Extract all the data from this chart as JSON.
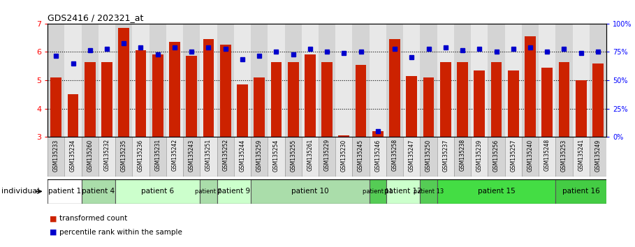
{
  "title": "GDS2416 / 202321_at",
  "samples": [
    "GSM135233",
    "GSM135234",
    "GSM135260",
    "GSM135232",
    "GSM135235",
    "GSM135236",
    "GSM135231",
    "GSM135242",
    "GSM135243",
    "GSM135251",
    "GSM135252",
    "GSM135244",
    "GSM135259",
    "GSM135254",
    "GSM135255",
    "GSM135261",
    "GSM135229",
    "GSM135230",
    "GSM135245",
    "GSM135246",
    "GSM135258",
    "GSM135247",
    "GSM135250",
    "GSM135237",
    "GSM135238",
    "GSM135239",
    "GSM135256",
    "GSM135257",
    "GSM135240",
    "GSM135248",
    "GSM135253",
    "GSM135241",
    "GSM135249"
  ],
  "bar_values": [
    5.1,
    4.5,
    5.65,
    5.65,
    6.85,
    6.05,
    5.9,
    6.35,
    5.85,
    6.45,
    6.25,
    4.85,
    5.1,
    5.65,
    5.65,
    5.9,
    5.65,
    3.05,
    5.55,
    3.2,
    6.45,
    5.15,
    5.1,
    5.65,
    5.65,
    5.35,
    5.65,
    5.35,
    6.55,
    5.45,
    5.65,
    5.0,
    5.6
  ],
  "dot_values": [
    5.85,
    5.6,
    6.05,
    6.1,
    6.3,
    6.15,
    5.9,
    6.15,
    6.0,
    6.15,
    6.1,
    5.75,
    5.85,
    6.0,
    5.9,
    6.1,
    6.0,
    5.95,
    6.0,
    3.2,
    6.1,
    5.8,
    6.1,
    6.15,
    6.05,
    6.1,
    6.0,
    6.1,
    6.15,
    6.0,
    6.1,
    5.95,
    6.0
  ],
  "patient_groups": [
    {
      "label": "patient 1",
      "start": 0,
      "end": 2,
      "color": "#ffffff"
    },
    {
      "label": "patient 4",
      "start": 2,
      "end": 4,
      "color": "#aaddaa"
    },
    {
      "label": "patient 6",
      "start": 4,
      "end": 9,
      "color": "#ccffcc"
    },
    {
      "label": "patient 7",
      "start": 9,
      "end": 10,
      "color": "#aaddaa"
    },
    {
      "label": "patient 9",
      "start": 10,
      "end": 12,
      "color": "#ccffcc"
    },
    {
      "label": "patient 10",
      "start": 12,
      "end": 19,
      "color": "#aaddaa"
    },
    {
      "label": "patient 11",
      "start": 19,
      "end": 20,
      "color": "#55cc55"
    },
    {
      "label": "patient 12",
      "start": 20,
      "end": 22,
      "color": "#ccffcc"
    },
    {
      "label": "patient 13",
      "start": 22,
      "end": 23,
      "color": "#55cc55"
    },
    {
      "label": "patient 15",
      "start": 23,
      "end": 30,
      "color": "#44dd44"
    },
    {
      "label": "patient 16",
      "start": 30,
      "end": 33,
      "color": "#44cc44"
    }
  ],
  "bar_color": "#cc2200",
  "dot_color": "#0000cc",
  "ylim_left": [
    3.0,
    7.0
  ],
  "ylim_right": [
    0,
    100
  ],
  "yticks_left": [
    3,
    4,
    5,
    6,
    7
  ],
  "yticks_right": [
    0,
    25,
    50,
    75,
    100
  ],
  "ytick_labels_right": [
    "0%",
    "25%",
    "50%",
    "75%",
    "100%"
  ],
  "hlines": [
    4.0,
    5.0,
    6.0
  ],
  "background_color": "#ffffff",
  "bar_width": 0.65,
  "plot_bg": "#e0e0e0",
  "tick_col_bg_even": "#d4d4d4",
  "tick_col_bg_odd": "#e8e8e8"
}
